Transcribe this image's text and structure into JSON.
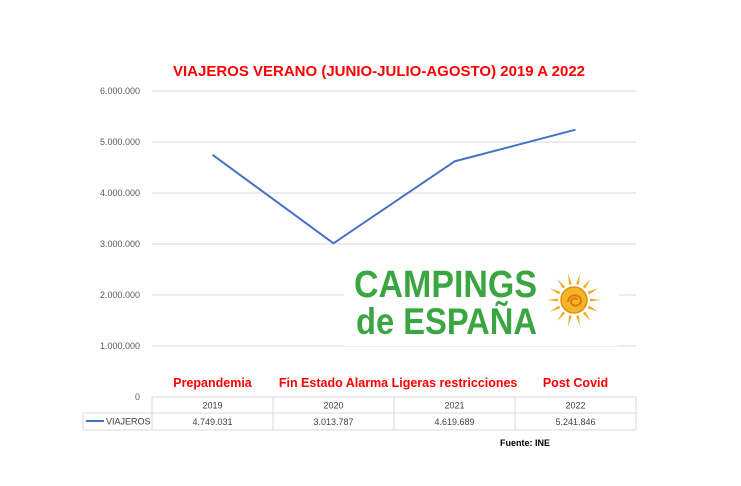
{
  "chart_data": {
    "type": "line",
    "title": "VIAJEROS VERANO (JUNIO-JULIO-AGOSTO) 2019 A 2022",
    "categories": [
      "2019",
      "2020",
      "2021",
      "2022"
    ],
    "period_labels": [
      "Prepandemia",
      "Fin Estado  Alarma",
      "Ligeras restricciones",
      "Post Covid"
    ],
    "series": [
      {
        "name": "VIAJEROS",
        "values": [
          4749031,
          3013787,
          4619689,
          5241846
        ],
        "display_values": [
          "4.749.031",
          "3.013.787",
          "4.619.689",
          "5.241.846"
        ],
        "color": "#4472c4"
      }
    ],
    "ylim": [
      0,
      6000000
    ],
    "yticks": [
      0,
      1000000,
      2000000,
      3000000,
      4000000,
      5000000,
      6000000
    ],
    "ytick_labels": [
      "0",
      "1.000.000",
      "2.000.000",
      "3.000.000",
      "4.000.000",
      "5.000.000",
      "6.000.000"
    ],
    "grid": true,
    "legend": "data-table",
    "xlabel": "",
    "ylabel": ""
  },
  "source_note": "Fuente: INE",
  "logo": {
    "line1": "CAMPINGS",
    "line2": "de ESPAÑA",
    "color": "#3aa641",
    "sun_color": "#f0a818"
  }
}
